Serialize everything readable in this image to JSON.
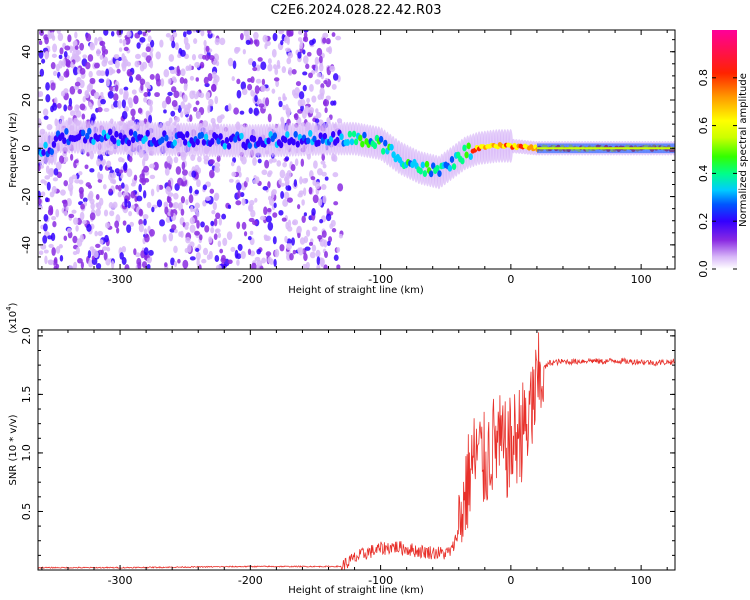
{
  "title": "C2E6.2024.028.22.42.R03",
  "chart_data": [
    {
      "type": "heatmap",
      "panel": "top",
      "xlabel": "Height of straight line (km)",
      "ylabel": "Frequency (Hz)",
      "xlim": [
        -363,
        126
      ],
      "ylim": [
        -50,
        49
      ],
      "xticks": [
        -300,
        -200,
        -100,
        0,
        100
      ],
      "yticks": [
        -40,
        -20,
        0,
        20,
        40
      ],
      "xtick_labels": [
        "-300",
        "-200",
        "-100",
        "0",
        "100"
      ],
      "ytick_labels": [
        "-40",
        "-20",
        "0",
        "20",
        "40"
      ],
      "colorbar": {
        "label": "Normalized spectral amplitude",
        "range": [
          0,
          1
        ],
        "ticks": [
          0,
          0.2,
          0.4,
          0.6,
          0.8
        ],
        "tick_labels": [
          "0.0",
          "0.2",
          "0.4",
          "0.6",
          "0.8"
        ],
        "colormap": [
          "#ffffff",
          "#d8b8f8",
          "#8a2be2",
          "#3300ff",
          "#0055ff",
          "#00ccff",
          "#00ff88",
          "#33ff00",
          "#ccff00",
          "#ffff00",
          "#ff9900",
          "#ff2200",
          "#ff0099"
        ]
      },
      "ridge": {
        "description_points": [
          {
            "x": -350,
            "y": 5
          },
          {
            "x": -280,
            "y": 4
          },
          {
            "x": -200,
            "y": 3
          },
          {
            "x": -140,
            "y": 4
          },
          {
            "x": -120,
            "y": 4
          },
          {
            "x": -100,
            "y": 2
          },
          {
            "x": -85,
            "y": -4
          },
          {
            "x": -70,
            "y": -8
          },
          {
            "x": -55,
            "y": -10
          },
          {
            "x": -45,
            "y": -6
          },
          {
            "x": -35,
            "y": -2
          },
          {
            "x": -25,
            "y": 0
          },
          {
            "x": -10,
            "y": 1
          },
          {
            "x": 0,
            "y": 1
          },
          {
            "x": 20,
            "y": 0
          },
          {
            "x": 126,
            "y": 0
          }
        ],
        "noise_region_x": [
          -363,
          -130
        ]
      }
    },
    {
      "type": "line",
      "panel": "bottom",
      "xlabel": "Height of straight line (km)",
      "ylabel": "SNR (10 * v/v)",
      "multiplier": "(x10^4)",
      "multiplier_base": "(x10",
      "multiplier_exp": "4",
      "multiplier_close": ")",
      "xlim": [
        -363,
        126
      ],
      "ylim": [
        0,
        2.05
      ],
      "xticks": [
        -300,
        -200,
        -100,
        0,
        100
      ],
      "yticks": [
        0.5,
        1.0,
        1.5,
        2.0
      ],
      "xtick_labels": [
        "-300",
        "-200",
        "-100",
        "0",
        "100"
      ],
      "ytick_labels": [
        "0.5",
        "1.0",
        "1.5",
        "2.0"
      ],
      "color": "#e8302a",
      "series": [
        {
          "x": [
            -363,
            -300,
            -200,
            -130,
            -120,
            -110,
            -100,
            -90,
            -80,
            -70,
            -60,
            -50,
            -45,
            -40,
            -35,
            -30,
            -25,
            -20,
            -15,
            -10,
            -5,
            0,
            5,
            10,
            15,
            20,
            25,
            30,
            40,
            50,
            60,
            70,
            80,
            90,
            100,
            110,
            126
          ],
          "y": [
            0.02,
            0.02,
            0.03,
            0.03,
            0.1,
            0.15,
            0.18,
            0.2,
            0.18,
            0.16,
            0.15,
            0.14,
            0.17,
            0.35,
            0.65,
            0.9,
            1.0,
            0.9,
            1.05,
            1.1,
            1.0,
            1.05,
            1.15,
            1.2,
            1.35,
            1.55,
            1.72,
            1.77,
            1.78,
            1.78,
            1.79,
            1.78,
            1.79,
            1.78,
            1.78,
            1.77,
            1.78
          ]
        }
      ]
    }
  ]
}
